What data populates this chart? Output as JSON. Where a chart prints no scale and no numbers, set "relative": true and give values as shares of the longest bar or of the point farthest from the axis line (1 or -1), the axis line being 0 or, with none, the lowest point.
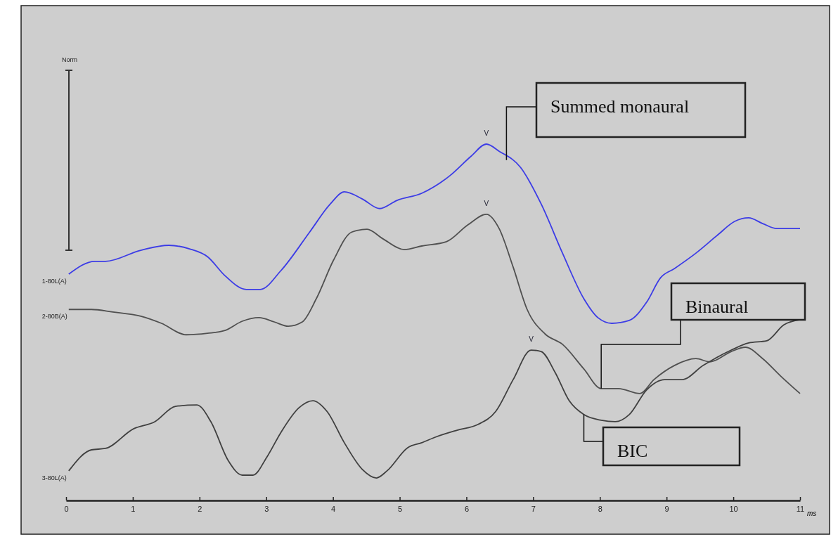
{
  "chart_data": {
    "type": "line",
    "relative": true,
    "xlabel": "ms",
    "xlim": [
      0,
      11
    ],
    "xticks": [
      0,
      1,
      2,
      3,
      4,
      5,
      6,
      7,
      8,
      9,
      10,
      11
    ],
    "tick_labels": "x",
    "series": [
      {
        "name": "1-80L(A)",
        "color": "#3c3ce6",
        "x": [
          0.04,
          0.43,
          0.59,
          1.12,
          1.54,
          1.85,
          2.12,
          2.38,
          2.7,
          2.91,
          3.22,
          3.65,
          3.96,
          4.17,
          4.44,
          4.7,
          4.96,
          5.33,
          5.75,
          6.07,
          6.3,
          6.49,
          6.81,
          7.12,
          7.44,
          7.76,
          7.97,
          8.18,
          8.44,
          8.7,
          8.91,
          9.12,
          9.44,
          9.76,
          10.02,
          10.23,
          10.44,
          10.65,
          11.0
        ],
        "values": [
          0.635,
          0.671,
          0.671,
          0.702,
          0.716,
          0.706,
          0.684,
          0.631,
          0.592,
          0.592,
          0.645,
          0.753,
          0.832,
          0.866,
          0.846,
          0.819,
          0.842,
          0.862,
          0.911,
          0.966,
          1,
          0.98,
          0.935,
          0.832,
          0.694,
          0.566,
          0.513,
          0.497,
          0.505,
          0.556,
          0.625,
          0.651,
          0.694,
          0.744,
          0.783,
          0.793,
          0.777,
          0.763,
          0.763
        ]
      },
      {
        "name": "2-80B(A)",
        "color": "#505050",
        "x": [
          0.04,
          0.38,
          0.7,
          1.12,
          1.43,
          1.8,
          2.12,
          2.38,
          2.64,
          2.89,
          3.12,
          3.33,
          3.54,
          3.75,
          4.01,
          4.28,
          4.51,
          4.75,
          5.07,
          5.33,
          5.7,
          6.02,
          6.3,
          6.49,
          6.7,
          6.91,
          7.18,
          7.44,
          7.76,
          8.02,
          8.28,
          8.6,
          8.81,
          9.12,
          9.44,
          9.65,
          9.97,
          10.18,
          10.44,
          10.71,
          11.0
        ],
        "values": [
          0.536,
          0.536,
          0.529,
          0.517,
          0.497,
          0.465,
          0.469,
          0.477,
          0.503,
          0.513,
          0.501,
          0.489,
          0.501,
          0.566,
          0.675,
          0.753,
          0.761,
          0.734,
          0.704,
          0.714,
          0.726,
          0.773,
          0.803,
          0.763,
          0.655,
          0.536,
          0.467,
          0.438,
          0.369,
          0.314,
          0.314,
          0.3,
          0.339,
          0.379,
          0.398,
          0.389,
          0.418,
          0.43,
          0.398,
          0.349,
          0.3
        ]
      },
      {
        "name": "3-80L(A)",
        "color": "#404040",
        "x": [
          0.04,
          0.38,
          0.59,
          1.01,
          1.33,
          1.64,
          1.96,
          2.17,
          2.43,
          2.64,
          2.8,
          3.01,
          3.22,
          3.49,
          3.7,
          3.91,
          4.17,
          4.44,
          4.65,
          4.81,
          5.12,
          5.33,
          5.54,
          5.86,
          6.17,
          6.44,
          6.7,
          6.97,
          7.12,
          7.33,
          7.54,
          7.76,
          8.02,
          8.23,
          8.44,
          8.7,
          8.97,
          9.23,
          9.55,
          9.97,
          10.23,
          10.5,
          10.76,
          11.0
        ],
        "values": [
          0.083,
          0.142,
          0.146,
          0.201,
          0.221,
          0.264,
          0.268,
          0.221,
          0.112,
          0.071,
          0.071,
          0.122,
          0.191,
          0.26,
          0.28,
          0.25,
          0.162,
          0.087,
          0.063,
          0.083,
          0.148,
          0.162,
          0.178,
          0.197,
          0.213,
          0.25,
          0.339,
          0.422,
          0.418,
          0.359,
          0.28,
          0.241,
          0.225,
          0.221,
          0.241,
          0.31,
          0.339,
          0.339,
          0.379,
          0.422,
          0.442,
          0.448,
          0.493,
          0.507
        ]
      }
    ],
    "annotations": [
      "Norm",
      {
        "text": "V",
        "x": 6.3,
        "y": 1
      },
      {
        "text": "V",
        "x": 6.3,
        "y": 0.803
      },
      {
        "text": "V",
        "x": 6.97,
        "y": 0.422
      },
      {
        "text": "Summed monaural",
        "x": 6.6,
        "y": 0.955
      },
      {
        "text": "Binaural",
        "x": 8.02,
        "y": 0.314
      },
      {
        "text": "BIC",
        "x": 7.76,
        "y": 0.241
      }
    ]
  }
}
